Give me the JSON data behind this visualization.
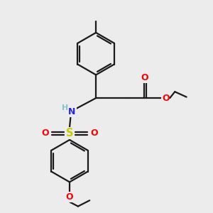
{
  "bg": "#ececec",
  "bond_color": "#1a1a1a",
  "lw": 1.6,
  "dbo": 0.12,
  "atom_colors": {
    "O": "#ff0000",
    "N": "#2222ff",
    "S": "#cccc00",
    "H": "#7ec8c8"
  },
  "fs": 8.5,
  "figsize": [
    3.0,
    3.0
  ],
  "dpi": 100
}
